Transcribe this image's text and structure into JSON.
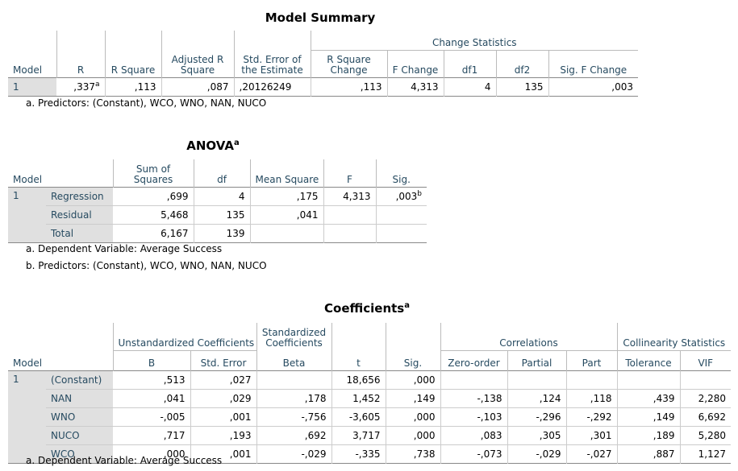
{
  "model_summary": {
    "title": "Model Summary",
    "group_header": "Change Statistics",
    "headers": [
      "Model",
      "R",
      "R Square",
      "Adjusted R Square",
      "Std. Error of the Estimate",
      "R Square Change",
      "F Change",
      "df1",
      "df2",
      "Sig. F Change"
    ],
    "row": {
      "model": "1",
      "r": ",337",
      "r_sup": "a",
      "r_square": ",113",
      "adj_r_square": ",087",
      "std_error": ",20126249",
      "r_square_change": ",113",
      "f_change": "4,313",
      "df1": "4",
      "df2": "135",
      "sig_f_change": ",003"
    },
    "footnote_a": "a. Predictors: (Constant), WCO, WNO, NAN, NUCO"
  },
  "anova": {
    "title": "ANOVA",
    "title_sup": "a",
    "headers": [
      "Model",
      "Sum of Squares",
      "df",
      "Mean Square",
      "F",
      "Sig."
    ],
    "model": "1",
    "rows": [
      {
        "label": "Regression",
        "ss": ",699",
        "df": "4",
        "ms": ",175",
        "f": "4,313",
        "sig": ",003",
        "sig_sup": "b"
      },
      {
        "label": "Residual",
        "ss": "5,468",
        "df": "135",
        "ms": ",041",
        "f": "",
        "sig": "",
        "sig_sup": ""
      },
      {
        "label": "Total",
        "ss": "6,167",
        "df": "139",
        "ms": "",
        "f": "",
        "sig": "",
        "sig_sup": ""
      }
    ],
    "footnote_a": "a. Dependent Variable: Average Success",
    "footnote_b": "b. Predictors: (Constant), WCO, WNO, NAN, NUCO"
  },
  "coefficients": {
    "title": "Coefficients",
    "title_sup": "a",
    "group_headers": {
      "unstandardized": "Unstandardized Coefficients",
      "standardized": "Standardized Coefficients",
      "correlations": "Correlations",
      "collinearity": "Collinearity Statistics"
    },
    "headers": [
      "Model",
      "B",
      "Std. Error",
      "Beta",
      "t",
      "Sig.",
      "Zero-order",
      "Partial",
      "Part",
      "Tolerance",
      "VIF"
    ],
    "model": "1",
    "rows": [
      {
        "label": "(Constant)",
        "b": ",513",
        "se": ",027",
        "beta": "",
        "t": "18,656",
        "sig": ",000",
        "zero": "",
        "partial": "",
        "part": "",
        "tol": "",
        "vif": ""
      },
      {
        "label": "NAN",
        "b": ",041",
        "se": ",029",
        "beta": ",178",
        "t": "1,452",
        "sig": ",149",
        "zero": "-,138",
        "partial": ",124",
        "part": ",118",
        "tol": ",439",
        "vif": "2,280"
      },
      {
        "label": "WNO",
        "b": "-,005",
        "se": ",001",
        "beta": "-,756",
        "t": "-3,605",
        "sig": ",000",
        "zero": "-,103",
        "partial": "-,296",
        "part": "-,292",
        "tol": ",149",
        "vif": "6,692"
      },
      {
        "label": "NUCO",
        "b": ",717",
        "se": ",193",
        "beta": ",692",
        "t": "3,717",
        "sig": ",000",
        "zero": ",083",
        "partial": ",305",
        "part": ",301",
        "tol": ",189",
        "vif": "5,280"
      },
      {
        "label": "WCO",
        "b": ",000",
        "se": ",001",
        "beta": "-,029",
        "t": "-,335",
        "sig": ",738",
        "zero": "-,073",
        "partial": "-,029",
        "part": "-,027",
        "tol": ",887",
        "vif": "1,127"
      }
    ],
    "footnote_a": "a. Dependent Variable: Average Success"
  }
}
